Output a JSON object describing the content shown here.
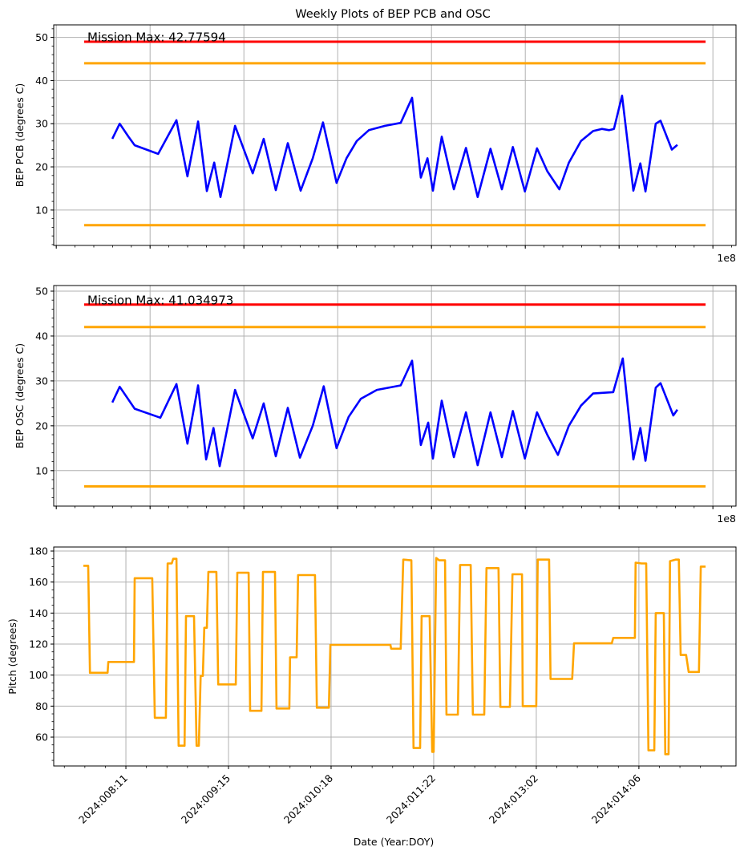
{
  "chart_data": [
    {
      "type": "line",
      "title": "Weekly Plots of BEP PCB and OSC",
      "xlabel": "",
      "ylabel": "BEP PCB (degrees C)",
      "x_units": "hours since 2024:008:00",
      "xlim": [
        -8.7,
        177.5
      ],
      "ylim": [
        1.8,
        52.9
      ],
      "yticks": [
        10,
        20,
        30,
        40,
        50
      ],
      "xticks": [
        -8.0,
        17.6,
        43.2,
        68.8,
        94.4,
        120.0,
        145.6,
        171.2
      ],
      "xtick_labels": [
        "",
        "",
        "",
        "",
        "",
        "",
        "",
        ""
      ],
      "x_offset_text": "1e8",
      "grid": true,
      "annotation": "Mission Max: 42.77594",
      "series": [
        {
          "name": "Red limit",
          "color": "#ff0000",
          "x": [
            -0.4,
            169.2
          ],
          "y": [
            49,
            49
          ]
        },
        {
          "name": "Upper yellow limit",
          "color": "#ffa500",
          "x": [
            -0.4,
            169.2
          ],
          "y": [
            44,
            44
          ]
        },
        {
          "name": "Lower yellow limit",
          "color": "#ffa500",
          "x": [
            -0.4,
            169.2
          ],
          "y": [
            6.5,
            6.5
          ]
        },
        {
          "name": "BEP PCB",
          "color": "#0000ff",
          "x": [
            7.3,
            9.3,
            11.7,
            13.4,
            19.8,
            24.8,
            27.8,
            30.7,
            33.1,
            35.1,
            36.8,
            40.8,
            45.6,
            48.6,
            51.9,
            55.2,
            58.7,
            62.0,
            64.8,
            68.5,
            71.2,
            74.0,
            77.3,
            81.7,
            86.0,
            89.1,
            91.5,
            93.3,
            94.8,
            97.2,
            100.5,
            103.8,
            107.0,
            110.5,
            113.6,
            116.6,
            119.9,
            123.2,
            126.0,
            129.3,
            131.9,
            135.2,
            138.5,
            140.9,
            142.9,
            144.2,
            146.4,
            149.5,
            151.4,
            152.8,
            155.6,
            156.9,
            160.0,
            161.5
          ],
          "y": [
            26.5,
            30,
            27,
            25,
            23,
            30.8,
            17.8,
            30.5,
            14.4,
            21,
            13,
            29.5,
            18.5,
            26.5,
            14.6,
            25.5,
            14.5,
            22,
            30.3,
            16.3,
            22,
            26,
            28.5,
            29.5,
            30.2,
            36,
            17.5,
            22,
            14.5,
            27,
            14.8,
            24.4,
            13,
            24.2,
            14.8,
            24.6,
            14.3,
            24.3,
            19,
            14.8,
            21,
            26,
            28.3,
            28.8,
            28.5,
            28.8,
            36.5,
            14.5,
            20.8,
            14.3,
            30,
            30.7,
            24,
            25.1
          ]
        }
      ]
    },
    {
      "type": "line",
      "title": "",
      "xlabel": "",
      "ylabel": "BEP OSC (degrees C)",
      "x_units": "hours since 2024:008:00",
      "xlim": [
        -8.7,
        177.5
      ],
      "ylim": [
        2.1,
        51.25
      ],
      "yticks": [
        10,
        20,
        30,
        40,
        50
      ],
      "xticks": [
        -8.0,
        17.6,
        43.2,
        68.8,
        94.4,
        120.0,
        145.6,
        171.2
      ],
      "xtick_labels": [
        "",
        "",
        "",
        "",
        "",
        "",
        "",
        ""
      ],
      "x_offset_text": "1e8",
      "grid": true,
      "annotation": "Mission Max: 41.034973",
      "series": [
        {
          "name": "Red limit",
          "color": "#ff0000",
          "x": [
            -0.4,
            169.2
          ],
          "y": [
            47,
            47
          ]
        },
        {
          "name": "Upper yellow limit",
          "color": "#ffa500",
          "x": [
            -0.4,
            169.2
          ],
          "y": [
            42,
            42
          ]
        },
        {
          "name": "Lower yellow limit",
          "color": "#ffa500",
          "x": [
            -0.4,
            169.2
          ],
          "y": [
            6.5,
            6.5
          ]
        },
        {
          "name": "BEP OSC",
          "color": "#0000ff",
          "x": [
            7.3,
            9.3,
            13.4,
            20.4,
            24.8,
            27.8,
            30.7,
            32.9,
            34.9,
            36.6,
            40.8,
            45.6,
            48.6,
            51.9,
            55.2,
            58.5,
            62.0,
            65.0,
            68.5,
            71.8,
            75.1,
            79.5,
            86.0,
            89.1,
            91.5,
            93.5,
            94.8,
            97.2,
            100.5,
            103.8,
            107.0,
            110.5,
            113.6,
            116.6,
            119.9,
            123.2,
            126.0,
            128.9,
            131.9,
            135.2,
            138.5,
            144.0,
            146.6,
            149.5,
            151.4,
            152.8,
            155.6,
            156.9,
            160.4,
            161.5
          ],
          "y": [
            25.2,
            28.7,
            23.8,
            21.8,
            29.3,
            16,
            29,
            12.5,
            19.5,
            11,
            28,
            17.2,
            25,
            13.2,
            24,
            12.9,
            20,
            28.8,
            15,
            22,
            26,
            28,
            29,
            34.5,
            15.7,
            20.7,
            12.7,
            25.6,
            13,
            23,
            11.2,
            23,
            13,
            23.3,
            12.7,
            23,
            18,
            13.5,
            20,
            24.5,
            27.2,
            27.5,
            35,
            12.5,
            19.5,
            12.2,
            28.5,
            29.5,
            22.3,
            23.6
          ]
        }
      ]
    },
    {
      "type": "line",
      "title": "",
      "xlabel": "Date (Year:DOY)",
      "ylabel": "Pitch (degrees)",
      "x_units": "hours since 2024:008:00",
      "xlim": [
        -8.7,
        177.5
      ],
      "ylim": [
        41.4,
        182.6
      ],
      "yticks": [
        60,
        80,
        100,
        120,
        140,
        160,
        180
      ],
      "xticks": [
        11,
        39,
        67,
        95,
        123,
        151
      ],
      "xtick_labels": [
        "2024:008:11",
        "2024:009:15",
        "2024:010:18",
        "2024:011:22",
        "2024:013:02",
        "2024:014:06"
      ],
      "x_offset_text": "",
      "grid": true,
      "annotation": "",
      "series": [
        {
          "name": "Pitch",
          "color": "#ffa500",
          "x": [
            -0.6,
            0.7,
            1.2,
            6.0,
            6.2,
            13.2,
            13.4,
            18.2,
            18.9,
            21.9,
            22.4,
            23.5,
            23.9,
            24.8,
            25.4,
            27.0,
            27.4,
            29.6,
            30.3,
            30.9,
            31.4,
            32.0,
            32.4,
            33.1,
            33.5,
            35.7,
            36.2,
            41.0,
            41.4,
            44.5,
            44.9,
            48.0,
            48.4,
            51.7,
            52.1,
            55.6,
            55.8,
            57.6,
            58.0,
            62.6,
            63.1,
            66.4,
            66.8,
            83.2,
            83.4,
            86.0,
            86.7,
            88.9,
            89.5,
            91.3,
            91.7,
            93.9,
            94.6,
            95.0,
            95.7,
            96.5,
            98.1,
            98.5,
            101.6,
            102.2,
            105.1,
            105.7,
            108.8,
            109.4,
            112.7,
            113.2,
            115.8,
            116.5,
            119.1,
            119.3,
            123.0,
            123.4,
            126.5,
            126.9,
            132.8,
            133.3,
            143.6,
            144.0,
            149.9,
            150.1,
            151.7,
            153.0,
            153.6,
            155.2,
            155.6,
            157.8,
            158.2,
            159.1,
            159.5,
            161.0,
            161.9,
            162.4,
            163.9,
            164.6,
            167.4,
            167.9,
            169.2
          ],
          "y": [
            170.5,
            170.5,
            101.5,
            101.5,
            108.5,
            108.5,
            162.5,
            162.5,
            72.5,
            72.5,
            172,
            172,
            175,
            175,
            54.5,
            54.5,
            138,
            138,
            54.5,
            54.5,
            99.5,
            99.5,
            130.5,
            130.5,
            166.5,
            166.5,
            94,
            94,
            166,
            166,
            77,
            77,
            166.5,
            166.5,
            78.5,
            78.5,
            111.5,
            111.5,
            164.5,
            164.5,
            79,
            79,
            119.5,
            119.5,
            117,
            117,
            174.5,
            174,
            53,
            53,
            138,
            138,
            50.5,
            50.5,
            175.5,
            174,
            174,
            74.5,
            74.5,
            171,
            171,
            74.5,
            74.5,
            169,
            169,
            79.5,
            79.5,
            165,
            165,
            80,
            80,
            174.5,
            174.5,
            97.5,
            97.5,
            120.5,
            120.5,
            124,
            124,
            172.5,
            172,
            172,
            51.5,
            51.5,
            140,
            140,
            49,
            49,
            173.5,
            174.5,
            174.5,
            113,
            113,
            102,
            102,
            170,
            170
          ]
        }
      ]
    }
  ]
}
